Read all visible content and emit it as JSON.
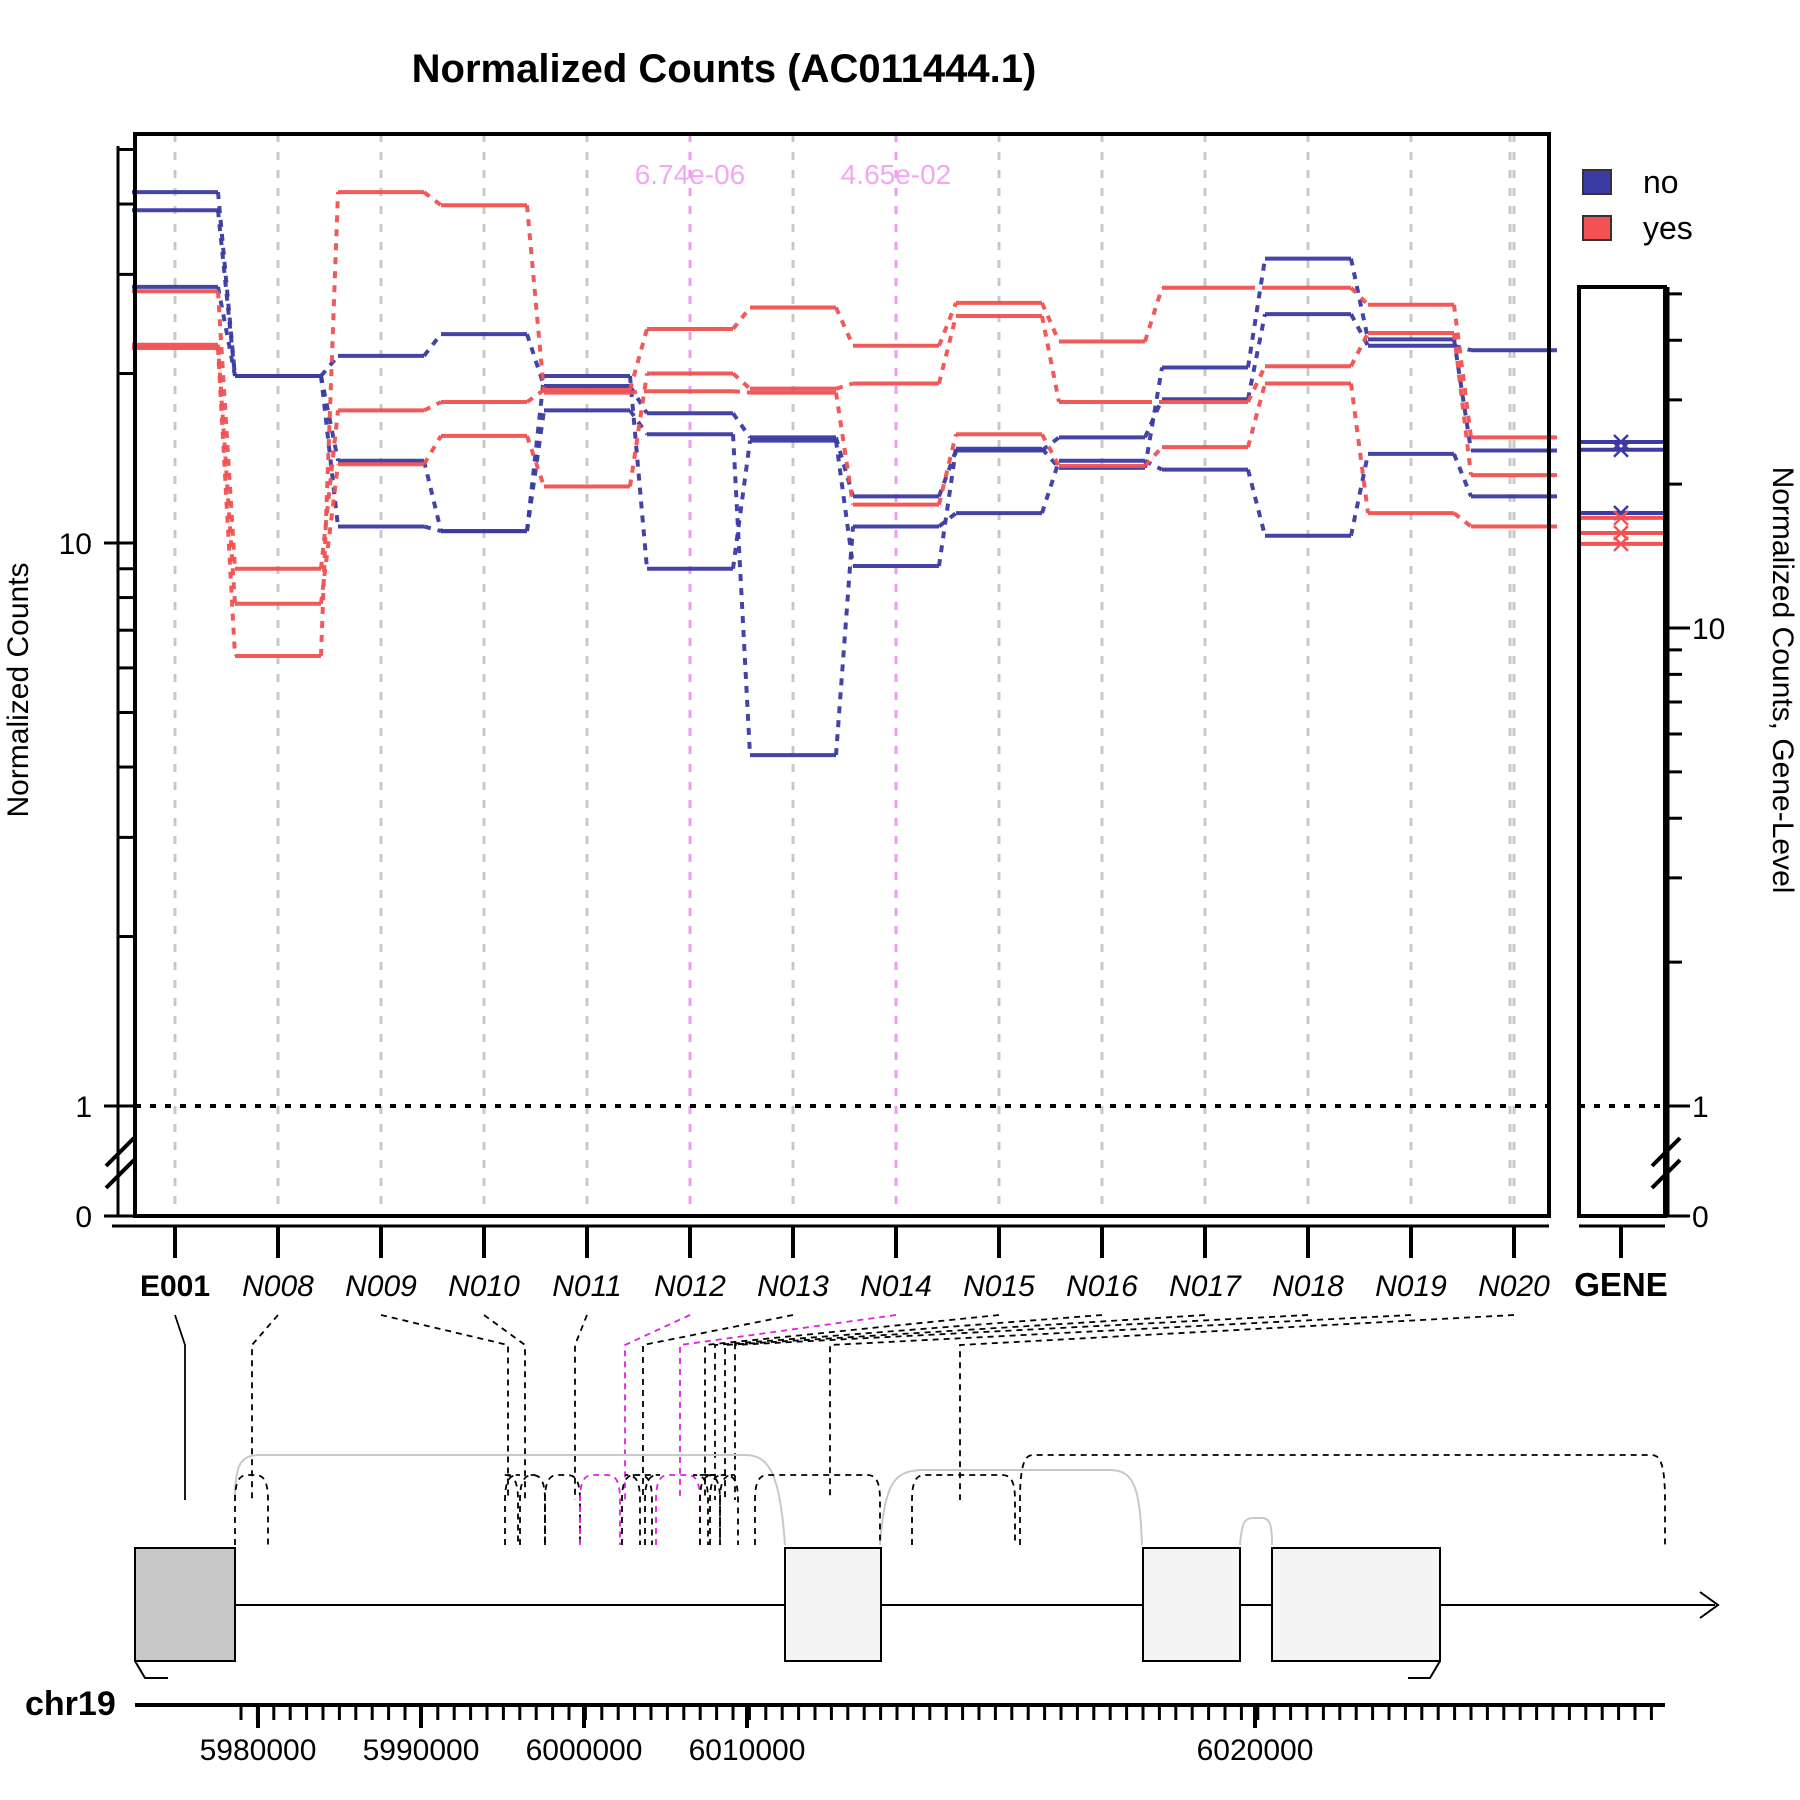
{
  "colors": {
    "no": "#3b3ba3",
    "yes": "#f25252",
    "highlight": "#f06cf0",
    "grid": "#c8c8c8"
  },
  "chart_data": {
    "type": "line",
    "title": "Normalized Counts (AC011444.1)",
    "ylabel": "Normalized Counts",
    "ylabel_right": "Normalized Counts, Gene-Level",
    "y_scale": "log (with break to 0)",
    "yticks": [
      "0",
      "1",
      "10"
    ],
    "right_yticks": [
      "0",
      "1",
      "10"
    ],
    "features": [
      {
        "label": "E001",
        "bold": true
      },
      {
        "label": "N008",
        "bold": false
      },
      {
        "label": "N009",
        "bold": false
      },
      {
        "label": "N010",
        "bold": false
      },
      {
        "label": "N011",
        "bold": false
      },
      {
        "label": "N012",
        "bold": false
      },
      {
        "label": "N013",
        "bold": false
      },
      {
        "label": "N014",
        "bold": false
      },
      {
        "label": "N015",
        "bold": false
      },
      {
        "label": "N016",
        "bold": false
      },
      {
        "label": "N017",
        "bold": false
      },
      {
        "label": "N018",
        "bold": false
      },
      {
        "label": "N019",
        "bold": false
      },
      {
        "label": "N020",
        "bold": false
      }
    ],
    "gene_label": "GENE",
    "highlight_features": [
      5,
      7
    ],
    "pvalues": [
      {
        "feature_index": 5,
        "text": "6.74e-06"
      },
      {
        "feature_index": 7,
        "text": "4.65e-02"
      }
    ],
    "legend": [
      {
        "name": "no",
        "color": "#3b3ba3"
      },
      {
        "name": "yes",
        "color": "#f25252"
      }
    ],
    "series": [
      {
        "group": "no",
        "values": [
          42,
          19.8,
          14,
          10.5,
          19.8,
          9,
          15.2,
          9.1,
          14.7,
          13.6,
          20.5,
          32,
          23,
          14.6
        ]
      },
      {
        "group": "no",
        "values": [
          39,
          19.8,
          21.5,
          23.5,
          19,
          17,
          15.4,
          12.1,
          14.6,
          15.4,
          18,
          25.5,
          22.4,
          22
        ]
      },
      {
        "group": "no",
        "values": [
          28.5,
          19.8,
          10.7,
          10.5,
          17.2,
          15.6,
          4.2,
          10.7,
          11.3,
          14,
          13.5,
          10.3,
          14.4,
          12.1
        ]
      },
      {
        "group": "yes",
        "values": [
          28,
          9,
          17.2,
          17.8,
          18.7,
          24,
          26.2,
          22.4,
          26.7,
          22.8,
          28.4,
          28.4,
          26.5,
          15.4
        ]
      },
      {
        "group": "yes",
        "values": [
          22.5,
          7.8,
          13.8,
          15.5,
          12.6,
          20,
          18.8,
          19.2,
          25.3,
          17.8,
          17.8,
          20.6,
          23.6,
          13.2
        ]
      },
      {
        "group": "yes",
        "values": [
          22.2,
          6.3,
          42,
          39.8,
          18.5,
          18.6,
          18.5,
          11.7,
          15.6,
          13.7,
          14.8,
          19.2,
          11.3,
          10.7
        ]
      }
    ],
    "gene_level": [
      {
        "group": "no",
        "value": 24.5
      },
      {
        "group": "no",
        "value": 23.6
      },
      {
        "group": "no",
        "value": 17.4
      },
      {
        "group": "yes",
        "value": 17.0
      },
      {
        "group": "yes",
        "value": 15.8
      },
      {
        "group": "yes",
        "value": 15.0
      }
    ],
    "chromosome": "chr19",
    "genome_ticks": [
      "5980000",
      "5990000",
      "6000000",
      "6010000",
      "6020000"
    ]
  }
}
